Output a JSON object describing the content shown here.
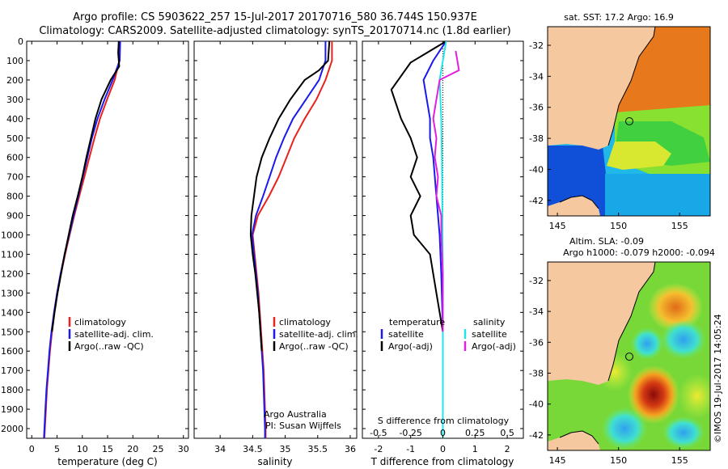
{
  "header": {
    "title_line1": "Argo profile: CS 5903622_257 15-Jul-2017 20170716_580 36.744S 150.937E",
    "title_line2": "Climatology: CARS2009. Satellite-adjusted climatology: synTS_20170714.nc (1.8d earlier)"
  },
  "colors": {
    "climatology": "#e8221c",
    "satellite": "#1a1aee",
    "argo": "#000000",
    "sat_salinity": "#22e5e5",
    "argo_salinity": "#e020e0",
    "land": "#f5c8a0"
  },
  "chart_data": [
    {
      "type": "line",
      "name": "temperature-profile",
      "xlabel": "temperature (deg C)",
      "ylim": [
        2050,
        0
      ],
      "xlim": [
        -1,
        31
      ],
      "xticks": [
        "0",
        "5",
        "10",
        "15",
        "20",
        "25",
        "30"
      ],
      "yticks": [
        "0",
        "100",
        "200",
        "300",
        "400",
        "500",
        "600",
        "700",
        "800",
        "900",
        "1000",
        "1100",
        "1200",
        "1300",
        "1400",
        "1500",
        "1600",
        "1700",
        "1800",
        "1900",
        "2000"
      ],
      "legend": [
        "climatology",
        "satellite-adj. clim.",
        "Argo(..raw -QC)"
      ],
      "series": [
        {
          "name": "climatology",
          "color": "#e8221c",
          "points": [
            [
              17.3,
              0
            ],
            [
              17.3,
              100
            ],
            [
              16.4,
              200
            ],
            [
              14.9,
              300
            ],
            [
              13.5,
              400
            ],
            [
              12.4,
              500
            ],
            [
              11.4,
              600
            ],
            [
              10.4,
              700
            ],
            [
              9.4,
              800
            ],
            [
              8.4,
              900
            ],
            [
              7.5,
              1000
            ],
            [
              6.6,
              1100
            ],
            [
              5.8,
              1200
            ],
            [
              5.1,
              1300
            ],
            [
              4.5,
              1400
            ],
            [
              4.0,
              1500
            ],
            [
              3.6,
              1600
            ],
            [
              3.3,
              1700
            ],
            [
              3.0,
              1800
            ],
            [
              2.8,
              1900
            ],
            [
              2.6,
              2000
            ],
            [
              2.5,
              2050
            ]
          ]
        },
        {
          "name": "satellite-adj. clim.",
          "color": "#1a1aee",
          "points": [
            [
              17.5,
              0
            ],
            [
              17.4,
              100
            ],
            [
              16.0,
              200
            ],
            [
              14.4,
              300
            ],
            [
              13.0,
              400
            ],
            [
              11.9,
              500
            ],
            [
              11.0,
              600
            ],
            [
              10.1,
              700
            ],
            [
              9.2,
              800
            ],
            [
              8.3,
              900
            ],
            [
              7.4,
              1000
            ],
            [
              6.5,
              1100
            ],
            [
              5.7,
              1200
            ],
            [
              5.0,
              1300
            ],
            [
              4.4,
              1400
            ],
            [
              3.9,
              1500
            ],
            [
              3.5,
              1600
            ],
            [
              3.2,
              1700
            ],
            [
              2.9,
              1800
            ],
            [
              2.7,
              1900
            ],
            [
              2.5,
              2000
            ],
            [
              2.4,
              2050
            ]
          ]
        },
        {
          "name": "Argo(..raw -QC)",
          "color": "#000000",
          "points": [
            [
              17.2,
              0
            ],
            [
              17.1,
              60
            ],
            [
              17.3,
              130
            ],
            [
              15.6,
              200
            ],
            [
              13.8,
              300
            ],
            [
              12.6,
              400
            ],
            [
              11.7,
              500
            ],
            [
              10.8,
              600
            ],
            [
              10.0,
              700
            ],
            [
              9.1,
              800
            ],
            [
              8.1,
              900
            ],
            [
              7.3,
              1000
            ],
            [
              6.5,
              1100
            ],
            [
              5.8,
              1200
            ],
            [
              5.1,
              1300
            ],
            [
              4.5,
              1400
            ],
            [
              4.0,
              1500
            ]
          ]
        }
      ]
    },
    {
      "type": "line",
      "name": "salinity-profile",
      "xlabel": "salinity",
      "ylim": [
        2050,
        0
      ],
      "xlim": [
        33.6,
        36.1
      ],
      "xticks": [
        "34",
        "34.5",
        "35",
        "35.5",
        "36"
      ],
      "legend": [
        "climatology",
        "satellite-adj. clim.",
        "Argo(..raw -QC)"
      ],
      "annotation": [
        "Argo Australia",
        "PI: Susan Wijffels"
      ],
      "series": [
        {
          "name": "climatology",
          "color": "#e8221c",
          "points": [
            [
              35.72,
              0
            ],
            [
              35.72,
              100
            ],
            [
              35.62,
              200
            ],
            [
              35.48,
              300
            ],
            [
              35.3,
              400
            ],
            [
              35.14,
              500
            ],
            [
              35.02,
              600
            ],
            [
              34.9,
              700
            ],
            [
              34.75,
              800
            ],
            [
              34.58,
              900
            ],
            [
              34.5,
              1000
            ],
            [
              34.53,
              1100
            ],
            [
              34.56,
              1200
            ],
            [
              34.59,
              1300
            ],
            [
              34.61,
              1400
            ],
            [
              34.63,
              1500
            ],
            [
              34.65,
              1600
            ],
            [
              34.67,
              1700
            ],
            [
              34.68,
              1800
            ],
            [
              34.69,
              1900
            ],
            [
              34.7,
              2000
            ],
            [
              34.7,
              2050
            ]
          ]
        },
        {
          "name": "satellite-adj. clim.",
          "color": "#1a1aee",
          "points": [
            [
              35.62,
              0
            ],
            [
              35.62,
              100
            ],
            [
              35.52,
              200
            ],
            [
              35.32,
              300
            ],
            [
              35.12,
              400
            ],
            [
              34.98,
              500
            ],
            [
              34.86,
              600
            ],
            [
              34.76,
              700
            ],
            [
              34.66,
              800
            ],
            [
              34.55,
              900
            ],
            [
              34.49,
              1000
            ],
            [
              34.52,
              1100
            ],
            [
              34.55,
              1200
            ],
            [
              34.58,
              1300
            ],
            [
              34.6,
              1400
            ],
            [
              34.62,
              1500
            ],
            [
              34.64,
              1600
            ],
            [
              34.66,
              1700
            ],
            [
              34.67,
              1800
            ],
            [
              34.68,
              1900
            ],
            [
              34.69,
              2000
            ],
            [
              34.69,
              2050
            ]
          ]
        },
        {
          "name": "Argo(..raw -QC)",
          "color": "#000000",
          "points": [
            [
              35.68,
              0
            ],
            [
              35.66,
              100
            ],
            [
              35.52,
              150
            ],
            [
              35.3,
              200
            ],
            [
              35.08,
              300
            ],
            [
              34.9,
              400
            ],
            [
              34.76,
              500
            ],
            [
              34.64,
              600
            ],
            [
              34.56,
              700
            ],
            [
              34.52,
              800
            ],
            [
              34.48,
              900
            ],
            [
              34.47,
              1000
            ],
            [
              34.5,
              1100
            ],
            [
              34.54,
              1200
            ],
            [
              34.57,
              1300
            ],
            [
              34.6,
              1400
            ],
            [
              34.62,
              1500
            ],
            [
              34.64,
              1600
            ]
          ]
        }
      ]
    },
    {
      "type": "line",
      "name": "difference-profile",
      "xlabel": "T difference from climatology",
      "top_label": "S difference from climatology",
      "ylim": [
        2050,
        0
      ],
      "xlim": [
        -2.5,
        2.5
      ],
      "xticks": [
        "-2",
        "-1",
        "0",
        "1",
        "2"
      ],
      "top_ticks": [
        "-0.5",
        "-0.25",
        "0",
        "0.25",
        "0.5"
      ],
      "legend_left_title": "temperature",
      "legend_right_title": "salinity",
      "legend": [
        "satellite",
        "Argo(-adj)",
        "satellite",
        "Argo(-adj)"
      ],
      "series": [
        {
          "name": "T satellite",
          "color": "#1a1aee",
          "points": [
            [
              0.1,
              0
            ],
            [
              -0.3,
              100
            ],
            [
              -0.6,
              200
            ],
            [
              -0.5,
              300
            ],
            [
              -0.4,
              400
            ],
            [
              -0.4,
              500
            ],
            [
              -0.3,
              600
            ],
            [
              -0.2,
              800
            ],
            [
              -0.1,
              1000
            ],
            [
              -0.05,
              1200
            ],
            [
              0,
              1500
            ],
            [
              0,
              2050
            ]
          ]
        },
        {
          "name": "T Argo(-adj)",
          "color": "#000000",
          "points": [
            [
              0.1,
              0
            ],
            [
              -0.5,
              60
            ],
            [
              -1.0,
              110
            ],
            [
              -1.6,
              250
            ],
            [
              -1.3,
              400
            ],
            [
              -1.0,
              500
            ],
            [
              -0.8,
              600
            ],
            [
              -1.0,
              700
            ],
            [
              -0.7,
              800
            ],
            [
              -1.0,
              900
            ],
            [
              -0.9,
              1000
            ],
            [
              -0.4,
              1100
            ],
            [
              -0.2,
              1300
            ],
            [
              0,
              1500
            ]
          ]
        },
        {
          "name": "S satellite",
          "color": "#22e5e5",
          "points": [
            [
              0.1,
              0
            ],
            [
              0,
              100
            ],
            [
              -0.1,
              200
            ],
            [
              -0.05,
              400
            ],
            [
              -0.03,
              600
            ],
            [
              -0.02,
              800
            ],
            [
              -0.01,
              1000
            ],
            [
              0,
              1200
            ],
            [
              0,
              2050
            ]
          ]
        },
        {
          "name": "S Argo(-adj)",
          "color": "#e020e0",
          "points": [
            [
              0.4,
              50
            ],
            [
              0.5,
              150
            ],
            [
              -0.1,
              200
            ],
            [
              -0.2,
              300
            ],
            [
              -0.3,
              400
            ],
            [
              -0.2,
              500
            ],
            [
              -0.25,
              600
            ],
            [
              -0.15,
              700
            ],
            [
              -0.2,
              800
            ],
            [
              -0.05,
              900
            ],
            [
              -0.05,
              1000
            ],
            [
              0,
              1200
            ],
            [
              0,
              1500
            ]
          ]
        }
      ]
    },
    {
      "type": "heatmap",
      "name": "sst-map",
      "title": "sat. SST: 17.2  Argo: 16.9",
      "xticks": [
        "145",
        "150",
        "155"
      ],
      "yticks": [
        "-32",
        "-34",
        "-36",
        "-38",
        "-40",
        "-42"
      ],
      "lon_range": [
        144.2,
        157.5
      ],
      "lat_range": [
        -43,
        -30.8
      ],
      "float_location": [
        150.937,
        -36.744
      ]
    },
    {
      "type": "heatmap",
      "name": "sla-map",
      "title_line1": "Altim. SLA: -0.09",
      "title_line2": "Argo h1000: -0.079 h2000: -0.094",
      "xticks": [
        "145",
        "150",
        "155"
      ],
      "yticks": [
        "-32",
        "-34",
        "-36",
        "-38",
        "-40",
        "-42"
      ],
      "lon_range": [
        144.2,
        157.5
      ],
      "lat_range": [
        -43,
        -30.8
      ],
      "float_location": [
        150.937,
        -36.744
      ]
    }
  ],
  "footer": {
    "credit": "©IMOS 19-Jul-2017 14:05:24"
  }
}
